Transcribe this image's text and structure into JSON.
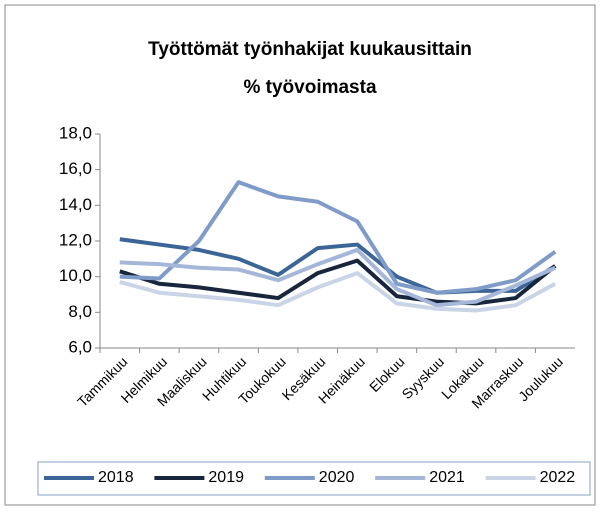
{
  "chart_data": {
    "type": "line",
    "title": [
      "Työttömät työnhakijat kuukausittain",
      "% työvoimasta"
    ],
    "categories": [
      "Tammikuu",
      "Helmikuu",
      "Maaliskuu",
      "Huhtikuu",
      "Toukokuu",
      "Kesäkuu",
      "Heinäkuu",
      "Elokuu",
      "Syyskuu",
      "Lokakuu",
      "Marraskuu",
      "Joulukuu"
    ],
    "series": [
      {
        "name": "2018",
        "color": "#3b6597",
        "values": [
          12.1,
          11.8,
          11.5,
          11.0,
          10.1,
          11.6,
          11.8,
          10.0,
          9.1,
          9.2,
          9.2,
          10.6
        ]
      },
      {
        "name": "2019",
        "color": "#17263d",
        "values": [
          10.3,
          9.6,
          9.4,
          9.1,
          8.8,
          10.2,
          10.9,
          8.9,
          8.6,
          8.5,
          8.8,
          10.6
        ]
      },
      {
        "name": "2020",
        "color": "#7f9cc9",
        "values": [
          10.0,
          9.9,
          12.0,
          15.3,
          14.5,
          14.2,
          13.1,
          9.6,
          9.1,
          9.3,
          9.8,
          11.4
        ]
      },
      {
        "name": "2021",
        "color": "#a4b7d8",
        "values": [
          10.8,
          10.7,
          10.5,
          10.4,
          9.8,
          10.7,
          11.5,
          9.3,
          8.4,
          8.6,
          9.5,
          10.5
        ]
      },
      {
        "name": "2022",
        "color": "#c9d4e7",
        "values": [
          9.7,
          9.1,
          8.9,
          8.7,
          8.4,
          9.4,
          10.2,
          8.5,
          8.2,
          8.1,
          8.4,
          9.6
        ]
      }
    ],
    "ylim": [
      6,
      18
    ],
    "yticks": [
      {
        "value": 6,
        "label": "6,0"
      },
      {
        "value": 8,
        "label": "8,0"
      },
      {
        "value": 10,
        "label": "10,0"
      },
      {
        "value": 12,
        "label": "12,0"
      },
      {
        "value": 14,
        "label": "14,0"
      },
      {
        "value": 16,
        "label": "16,0"
      },
      {
        "value": 18,
        "label": "18,0"
      }
    ],
    "grid": false,
    "legend": "bottom"
  }
}
